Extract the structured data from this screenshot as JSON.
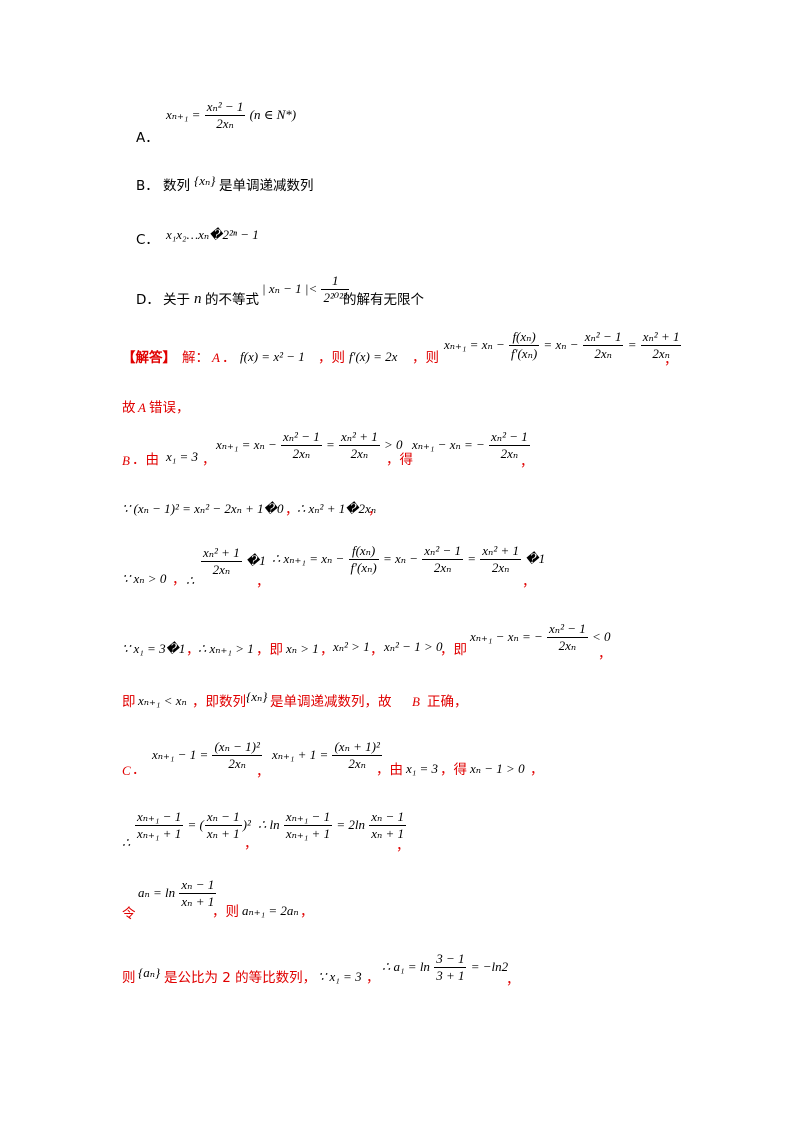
{
  "options": {
    "A": {
      "label": "A．",
      "formula": "x_{n+1} = (x_n^2 − 1)/(2x_n) (n ∈ N*)",
      "lhs": "xₙ₊₁ =",
      "num": "xₙ² − 1",
      "den": "2xₙ",
      "cond": "(n ∈ N*)"
    },
    "B": {
      "label": "B．",
      "pre": "数列",
      "seq": "{xₙ}",
      "post": "是单调递减数列"
    },
    "C": {
      "label": "C．",
      "formula": "x₁x₂…xₙ�2²ⁿ − 1"
    },
    "D": {
      "label": "D．",
      "pre": "关于",
      "var": "n",
      "mid": "的不等式",
      "ineq_lhs": "| xₙ − 1 |<",
      "num": "1",
      "den": "2²⁰²³",
      "post": "的解有无限个"
    }
  },
  "solution": {
    "tag": "【解答】",
    "intro": "解：",
    "A": {
      "label": "A",
      "dot": "．",
      "f": "f(x) = x² − 1",
      "comma1": "，则",
      "fprime": "f′(x) = 2x",
      "comma2": "，则",
      "newton": "xₙ₊₁ = xₙ −",
      "newton_num": "f(xₙ)",
      "newton_den": "f′(xₙ)",
      "eq2": "= xₙ −",
      "num2": "xₙ² − 1",
      "den2": "2xₙ",
      "eq3": "=",
      "num3": "xₙ² + 1",
      "den3": "2xₙ",
      "tail": "，",
      "conclusion_pre": "故",
      "conclusion_var": "A",
      "conclusion_post": "错误，"
    },
    "B": {
      "label": "B",
      "dot": "．由",
      "x1": "x₁ = 3",
      "comma1": "，",
      "e1": "xₙ₊₁ = xₙ −",
      "num1": "xₙ² − 1",
      "den1": "2xₙ",
      "eq1": "=",
      "num1b": "xₙ² + 1",
      "den1b": "2xₙ",
      "gt0": "> 0",
      "de": "，得",
      "e2": "xₙ₊₁ − xₙ = −",
      "num2": "xₙ² − 1",
      "den2": "2xₙ",
      "tail": "，",
      "line3_a": "∵ (xₙ − 1)² = xₙ² − 2xₙ + 1�0",
      "line3_sep": "，",
      "line3_b": "∴  xₙ² + 1�2xₙ",
      "line3_tail": "，",
      "line4_a": "∵ xₙ > 0",
      "line4_sep": "，",
      "line4_therefore": "∴",
      "line4_num": "xₙ² + 1",
      "line4_den": "2xₙ",
      "line4_ge": "�1",
      "line4_sep2": "，",
      "line4_b": "∴ xₙ₊₁ = xₙ −",
      "line4_fnum": "f(xₙ)",
      "line4_fden": "f′(xₙ)",
      "line4_eq": "= xₙ −",
      "line4_num2": "xₙ² − 1",
      "line4_den2": "2xₙ",
      "line4_eq2": "=",
      "line4_num3": "xₙ² + 1",
      "line4_den3": "2xₙ",
      "line4_ge2": "�1",
      "line4_tail": "，",
      "line5_a": "∵ x₁ = 3�1",
      "line5_sep": "，",
      "line5_b": "∴ xₙ₊₁ > 1",
      "line5_ji": "，即",
      "line5_c": "xₙ > 1",
      "line5_sep2": "，",
      "line5_d": "xₙ² > 1",
      "line5_sep3": "，",
      "line5_e": "xₙ² − 1 > 0",
      "line5_ji2": "，即",
      "line5_f": "xₙ₊₁ − xₙ = −",
      "line5_num": "xₙ² − 1",
      "line5_den": "2xₙ",
      "line5_lt": "< 0",
      "line5_tail": "，",
      "line6_ji": "即",
      "line6_a": "xₙ₊₁ < xₙ",
      "line6_mid": "，即数列",
      "line6_seq": "{xₙ}",
      "line6_post": "是单调递减数列，故",
      "line6_var": "B",
      "line6_end": "正确，"
    },
    "C": {
      "label": "C",
      "dot": "．",
      "e1_lhs": "xₙ₊₁ − 1 =",
      "e1_num": "(xₙ − 1)²",
      "e1_den": "2xₙ",
      "sep1": "，",
      "e2_lhs": "xₙ₊₁ + 1 =",
      "e2_num": "(xₙ + 1)²",
      "e2_den": "2xₙ",
      "you": "，由",
      "x1": "x₁ = 3",
      "de": "，得",
      "pos": "xₙ − 1 > 0",
      "tail": "，",
      "l2_therefore": "∴",
      "l2_num1": "xₙ₊₁ − 1",
      "l2_den1": "xₙ₊₁ + 1",
      "l2_eq": "= (",
      "l2_num2": "xₙ − 1",
      "l2_den2": "xₙ + 1",
      "l2_sq": ")²",
      "l2_sep": "，",
      "l2_b": "∴ ln",
      "l2_num3": "xₙ₊₁ − 1",
      "l2_den3": "xₙ₊₁ + 1",
      "l2_eq2": "= 2ln",
      "l2_num4": "xₙ − 1",
      "l2_den4": "xₙ + 1",
      "l2_tail": "，",
      "l3_ling": "令",
      "l3_a": "aₙ = ln",
      "l3_num": "xₙ − 1",
      "l3_den": "xₙ + 1",
      "l3_ze": "，则",
      "l3_b": "aₙ₊₁ = 2aₙ",
      "l3_tail": "，",
      "l4_ze": "则",
      "l4_seq": "{aₙ}",
      "l4_mid": "是公比为 2 的等比数列，",
      "l4_b": "∵ x₁ = 3",
      "l4_sep": "，",
      "l4_c": "∴ a₁ = ln",
      "l4_num": "3 − 1",
      "l4_den": "3 + 1",
      "l4_eq": "= −ln2",
      "l4_tail": "，"
    }
  }
}
